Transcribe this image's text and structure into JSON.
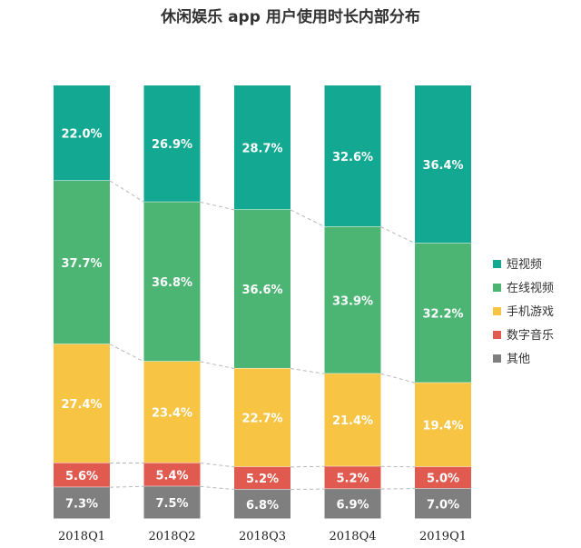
{
  "chart_data": {
    "type": "bar",
    "stacked": true,
    "percent": true,
    "title": "休闲娱乐 app 用户使用时长内部分布",
    "categories": [
      "2018Q1",
      "2018Q2",
      "2018Q3",
      "2018Q4",
      "2019Q1"
    ],
    "series": [
      {
        "name": "其他",
        "color": "#7f7f7f",
        "values": [
          7.3,
          7.5,
          6.8,
          6.9,
          7.0
        ],
        "labels": [
          "7.3%",
          "7.5%",
          "6.8%",
          "6.9%",
          "7.0%"
        ]
      },
      {
        "name": "数字音乐",
        "color": "#e05a4f",
        "values": [
          5.6,
          5.4,
          5.2,
          5.2,
          5.0
        ],
        "labels": [
          "5.6%",
          "5.4%",
          "5.2%",
          "5.2%",
          "5.0%"
        ]
      },
      {
        "name": "手机游戏",
        "color": "#f7c444",
        "values": [
          27.4,
          23.4,
          22.7,
          21.4,
          19.4
        ],
        "labels": [
          "27.4%",
          "23.4%",
          "22.7%",
          "21.4%",
          "19.4%"
        ]
      },
      {
        "name": "在线视频",
        "color": "#4cb574",
        "values": [
          37.7,
          36.8,
          36.6,
          33.9,
          32.2
        ],
        "labels": [
          "37.7%",
          "36.8%",
          "36.6%",
          "33.9%",
          "32.2%"
        ]
      },
      {
        "name": "短视频",
        "color": "#12a892",
        "values": [
          22.0,
          26.9,
          28.7,
          32.6,
          36.4
        ],
        "labels": [
          "22.0%",
          "26.9%",
          "28.7%",
          "32.6%",
          "36.4%"
        ]
      }
    ],
    "legend": {
      "position": "right",
      "order": [
        "短视频",
        "在线视频",
        "手机游戏",
        "数字音乐",
        "其他"
      ]
    },
    "ylim": [
      0,
      100
    ],
    "grid": false
  }
}
